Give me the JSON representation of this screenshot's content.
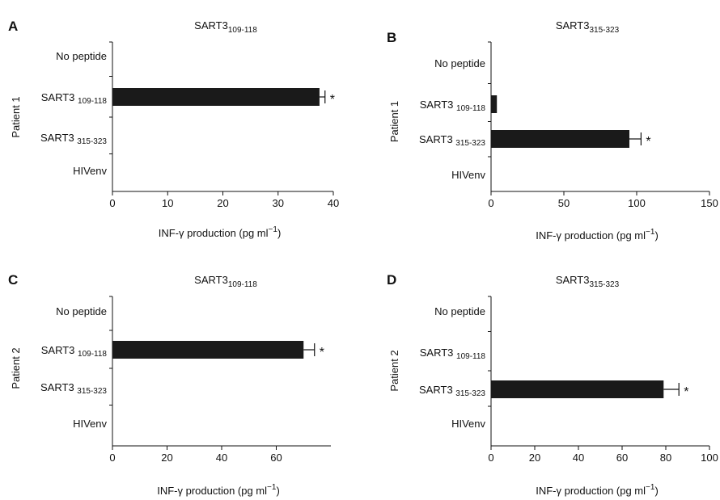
{
  "chart_data": [
    {
      "type": "bar",
      "orientation": "horizontal",
      "panel_label": "A",
      "title": "SART3",
      "title_sub": "109-118",
      "group_label": "Patient 1",
      "categories": [
        {
          "name": "No peptide",
          "sub": ""
        },
        {
          "name": "SART3 ",
          "sub": "109-118"
        },
        {
          "name": "SART3 ",
          "sub": "315-323"
        },
        {
          "name": "HIVenv",
          "sub": ""
        }
      ],
      "values": [
        0,
        37.5,
        0,
        0
      ],
      "errors": [
        0,
        1.0,
        0,
        0
      ],
      "significance": [
        "",
        "*",
        "",
        ""
      ],
      "xlim": [
        0,
        40
      ],
      "xticks": [
        "0",
        "10",
        "20",
        "30",
        "40"
      ],
      "xlabel": "INF-γ production (pg ml",
      "xlabel_sup": "−1",
      "xlabel_end": ")",
      "bar_color": "#1a1a1a"
    },
    {
      "type": "bar",
      "orientation": "horizontal",
      "panel_label": "B",
      "title": "SART3",
      "title_sub": "315-323",
      "group_label": "Patient 1",
      "categories": [
        {
          "name": "No peptide",
          "sub": ""
        },
        {
          "name": "SART3 ",
          "sub": "109-118"
        },
        {
          "name": "SART3 ",
          "sub": "315-323"
        },
        {
          "name": "HIVenv",
          "sub": ""
        }
      ],
      "values": [
        0,
        4,
        95,
        0
      ],
      "errors": [
        0,
        0,
        8,
        0
      ],
      "significance": [
        "",
        "",
        "*",
        ""
      ],
      "xlim": [
        0,
        150
      ],
      "xticks": [
        "0",
        "50",
        "100",
        "150"
      ],
      "xlabel": "INF-γ production (pg ml",
      "xlabel_sup": "−1",
      "xlabel_end": ")",
      "bar_color": "#1a1a1a"
    },
    {
      "type": "bar",
      "orientation": "horizontal",
      "panel_label": "C",
      "title": "SART3",
      "title_sub": "109-118",
      "group_label": "Patient 2",
      "categories": [
        {
          "name": "No peptide",
          "sub": ""
        },
        {
          "name": "SART3 ",
          "sub": "109-118"
        },
        {
          "name": "SART3 ",
          "sub": "315-323"
        },
        {
          "name": "HIVenv",
          "sub": ""
        }
      ],
      "values": [
        0,
        70,
        0,
        0
      ],
      "errors": [
        0,
        4,
        0,
        0
      ],
      "significance": [
        "",
        "*",
        "",
        ""
      ],
      "xlim": [
        0,
        80
      ],
      "xticks": [
        "0",
        "20",
        "40",
        "60"
      ],
      "xlabel": "INF-γ production (pg ml",
      "xlabel_sup": "−1",
      "xlabel_end": ")",
      "bar_color": "#1a1a1a"
    },
    {
      "type": "bar",
      "orientation": "horizontal",
      "panel_label": "D",
      "title": "SART3",
      "title_sub": "315-323",
      "group_label": "Patient 2",
      "categories": [
        {
          "name": "No peptide",
          "sub": ""
        },
        {
          "name": "SART3 ",
          "sub": "109-118"
        },
        {
          "name": "SART3 ",
          "sub": "315-323"
        },
        {
          "name": "HIVenv",
          "sub": ""
        }
      ],
      "values": [
        0,
        0,
        79,
        0
      ],
      "errors": [
        0,
        0,
        7,
        0
      ],
      "significance": [
        "",
        "",
        "*",
        ""
      ],
      "xlim": [
        0,
        100
      ],
      "xticks": [
        "0",
        "20",
        "40",
        "60",
        "80",
        "100"
      ],
      "xlabel": "INF-γ production (pg ml",
      "xlabel_sup": "−1",
      "xlabel_end": ")",
      "bar_color": "#1a1a1a"
    }
  ]
}
